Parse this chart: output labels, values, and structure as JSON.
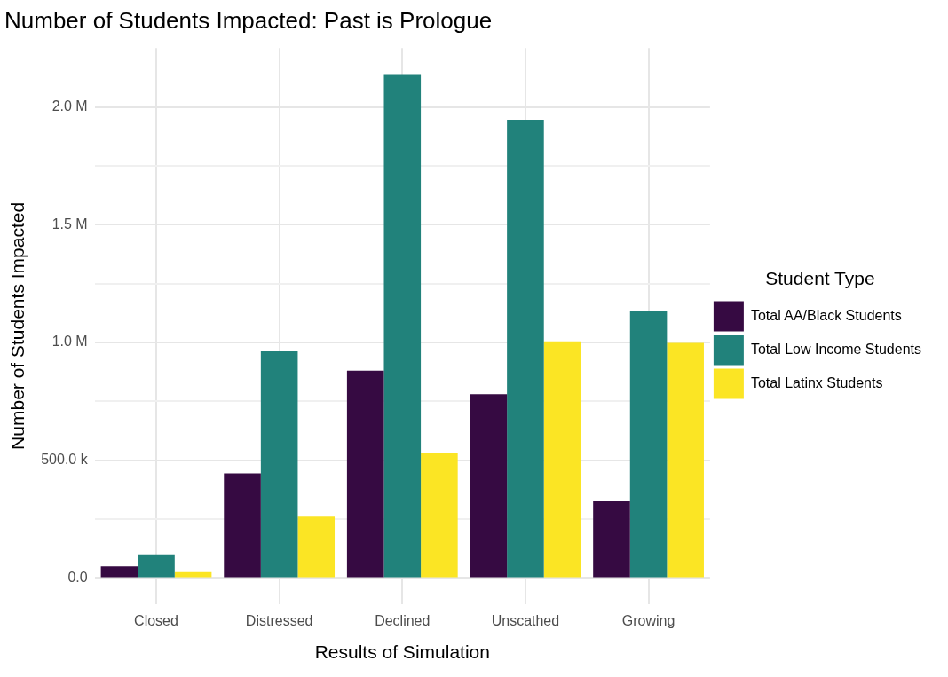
{
  "chart_data": {
    "type": "bar",
    "title": "Number of Students Impacted: Past is Prologue",
    "xlabel": "Results of Simulation",
    "ylabel": "Number of Students Impacted",
    "legend_title": "Student Type",
    "categories": [
      "Closed",
      "Distressed",
      "Declined",
      "Unscathed",
      "Growing"
    ],
    "series": [
      {
        "name": "Total AA/Black Students",
        "color": "#360a42",
        "values": [
          50000,
          444000,
          880000,
          780000,
          326000
        ]
      },
      {
        "name": "Total Low Income Students",
        "color": "#21827b",
        "values": [
          100000,
          962000,
          2140000,
          1946000,
          1134000
        ]
      },
      {
        "name": "Total Latinx Students",
        "color": "#fbe524",
        "values": [
          25000,
          261000,
          533000,
          1005000,
          998000
        ]
      }
    ],
    "ylim": [
      -110000,
      2250000
    ],
    "yticks": [
      {
        "value": 0,
        "label": "0.0"
      },
      {
        "value": 250000,
        "label": null
      },
      {
        "value": 500000,
        "label": "500.0 k"
      },
      {
        "value": 750000,
        "label": null
      },
      {
        "value": 1000000,
        "label": "1.0 M"
      },
      {
        "value": 1250000,
        "label": null
      },
      {
        "value": 1500000,
        "label": "1.5 M"
      },
      {
        "value": 1750000,
        "label": null
      },
      {
        "value": 2000000,
        "label": "2.0 M"
      }
    ],
    "grid": true,
    "legend": "right"
  }
}
